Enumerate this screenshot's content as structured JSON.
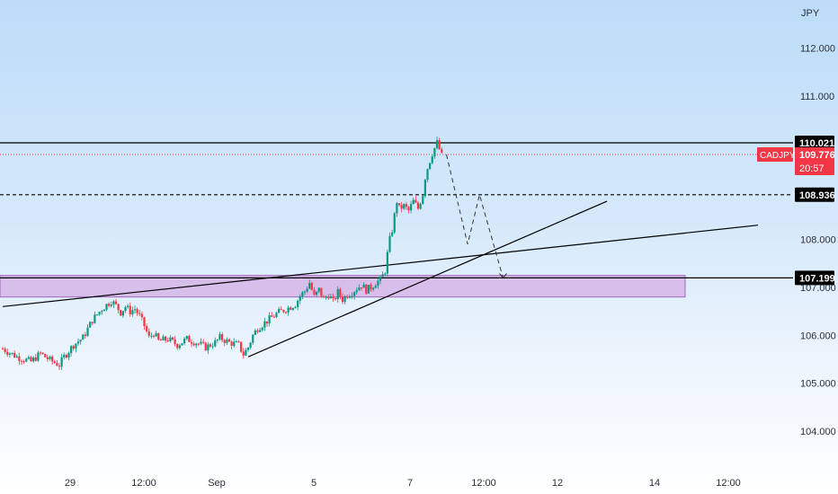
{
  "chart_data": {
    "type": "candlestick",
    "symbol": "CADJPY",
    "currency": "JPY",
    "y_axis": {
      "range": [
        103.6,
        112.6
      ],
      "ticks": [
        "104.000",
        "105.000",
        "106.000",
        "107.000",
        "108.000",
        "111.000",
        "112.000"
      ]
    },
    "x_axis": {
      "ticks": [
        "29",
        "12:00",
        "Sep",
        "5",
        "7",
        "12:00",
        "12",
        "14",
        "12:00"
      ]
    },
    "price_tags": {
      "resistance": "110.021",
      "last_price": "109.776",
      "countdown": "20:57",
      "mid_level": "108.936",
      "support": "107.199"
    },
    "levels": {
      "resistance": 110.021,
      "mid_level": 108.936,
      "support": 107.199,
      "last_price": 109.776
    },
    "zone": {
      "from": 106.8,
      "to": 107.25
    },
    "price_path": [
      [
        0,
        105.72
      ],
      [
        3,
        105.55
      ],
      [
        6,
        105.45
      ],
      [
        8,
        105.62
      ],
      [
        10,
        105.48
      ],
      [
        12,
        105.38
      ],
      [
        13,
        105.55
      ],
      [
        15,
        105.8
      ],
      [
        17,
        105.95
      ],
      [
        19,
        106.32
      ],
      [
        21,
        106.55
      ],
      [
        23,
        106.72
      ],
      [
        24,
        106.62
      ],
      [
        25,
        106.48
      ],
      [
        26,
        106.6
      ],
      [
        27,
        106.5
      ],
      [
        28,
        106.55
      ],
      [
        29,
        106.4
      ],
      [
        30,
        106.2
      ],
      [
        31,
        105.95
      ],
      [
        32,
        106.05
      ],
      [
        33,
        105.88
      ],
      [
        35,
        105.92
      ],
      [
        37,
        105.8
      ],
      [
        39,
        105.92
      ],
      [
        41,
        105.85
      ],
      [
        43,
        105.75
      ],
      [
        45,
        105.85
      ],
      [
        46,
        105.95
      ],
      [
        48,
        105.85
      ],
      [
        50,
        105.8
      ],
      [
        51,
        105.6
      ],
      [
        52,
        105.75
      ],
      [
        53,
        106.0
      ],
      [
        54,
        106.15
      ],
      [
        56,
        106.3
      ],
      [
        58,
        106.45
      ],
      [
        60,
        106.55
      ],
      [
        62,
        106.65
      ],
      [
        63,
        106.82
      ],
      [
        64,
        106.92
      ],
      [
        65,
        107.1
      ],
      [
        66,
        106.8
      ],
      [
        67,
        106.95
      ],
      [
        68,
        106.75
      ],
      [
        69,
        106.85
      ],
      [
        70,
        106.7
      ],
      [
        71,
        106.9
      ],
      [
        72,
        106.75
      ],
      [
        73,
        106.85
      ],
      [
        74,
        106.9
      ],
      [
        75,
        106.98
      ],
      [
        76,
        107.05
      ],
      [
        77,
        106.95
      ],
      [
        78,
        107.0
      ],
      [
        79,
        107.1
      ],
      [
        80,
        107.15
      ],
      [
        81,
        107.35
      ],
      [
        81.5,
        107.7
      ],
      [
        82,
        108.0
      ],
      [
        82.5,
        108.2
      ],
      [
        83,
        108.5
      ],
      [
        83.5,
        108.8
      ],
      [
        84,
        108.65
      ],
      [
        85,
        108.7
      ],
      [
        86,
        108.6
      ],
      [
        87,
        108.8
      ],
      [
        88,
        108.65
      ],
      [
        89,
        108.95
      ],
      [
        89.5,
        109.3
      ],
      [
        90,
        109.5
      ],
      [
        91,
        109.8
      ],
      [
        92,
        110.02
      ],
      [
        93,
        109.75
      ]
    ],
    "trendlines": [
      {
        "name": "lower-trendline",
        "from": [
          0,
          106.6
        ],
        "to": [
          160,
          108.3
        ]
      },
      {
        "name": "rising-trendline",
        "from": [
          52,
          105.55
        ],
        "to": [
          128,
          108.8
        ]
      }
    ],
    "projection": [
      [
        94,
        109.776
      ],
      [
        98.5,
        107.9
      ],
      [
        101,
        108.936
      ],
      [
        106,
        107.199
      ]
    ],
    "colors": {
      "up": "#089981",
      "down": "#f23645",
      "zone_fill": "#d8b9ea",
      "zone_border": "#9b59b6",
      "symbol_tag": "#f23645",
      "level_tag": "#000000",
      "line": "#000000"
    }
  }
}
